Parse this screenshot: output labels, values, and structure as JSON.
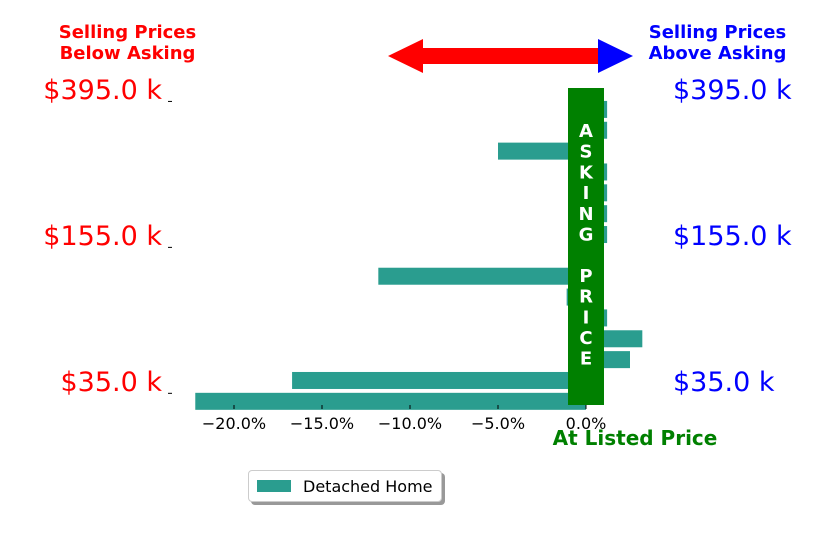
{
  "header": {
    "left_line1": "Selling Prices",
    "left_line2": "Below Asking",
    "right_line1": "Selling Prices",
    "right_line2": "Above Asking"
  },
  "annotations": {
    "asking_price": "ASKING PRICE",
    "at_listed_price": "At Listed Price"
  },
  "colors": {
    "below": "#ff0000",
    "above": "#0000ff",
    "bar": "#2a9d8f",
    "asking": "#008000"
  },
  "chart_data": {
    "type": "bar",
    "orientation": "horizontal",
    "xlim": [
      -23,
      2.5
    ],
    "xticks": [
      "−20.0%",
      "−15.0%",
      "−10.0%",
      "−5.0%",
      "0.0%"
    ],
    "xtick_values": [
      -20,
      -15,
      -10,
      -5,
      0
    ],
    "y_tick_labels": [
      "$395.0 k",
      "$155.0 k",
      "$35.0 k"
    ],
    "y_tick_indices": [
      0,
      7,
      14
    ],
    "series": [
      {
        "name": "Detached Home",
        "values": [
          1.2,
          1.2,
          -5.0,
          1.2,
          1.2,
          1.2,
          1.2,
          0.0,
          -11.8,
          -1.1,
          1.2,
          3.2,
          2.5,
          -16.7,
          -22.2
        ]
      }
    ],
    "legend": "bottom-center"
  }
}
